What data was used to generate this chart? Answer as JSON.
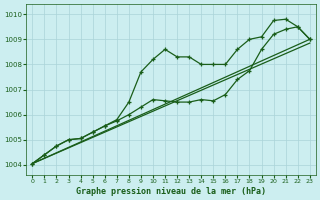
{
  "bg_color": "#cceef0",
  "grid_color": "#aad4d8",
  "line_color": "#1a5e1a",
  "xlabel": "Graphe pression niveau de la mer (hPa)",
  "ylim": [
    1003.6,
    1010.4
  ],
  "xlim": [
    -0.5,
    23.5
  ],
  "yticks": [
    1004,
    1005,
    1006,
    1007,
    1008,
    1009,
    1010
  ],
  "xticks": [
    0,
    1,
    2,
    3,
    4,
    5,
    6,
    7,
    8,
    9,
    10,
    11,
    12,
    13,
    14,
    15,
    16,
    17,
    18,
    19,
    20,
    21,
    22,
    23
  ],
  "line1_x": [
    0,
    1,
    2,
    3,
    4,
    5,
    6,
    7,
    8,
    9,
    10,
    11,
    12,
    13,
    14,
    15,
    16,
    17,
    18,
    19,
    20,
    21,
    22,
    23
  ],
  "line1_y": [
    1004.05,
    1004.4,
    1004.75,
    1005.0,
    1005.05,
    1005.3,
    1005.55,
    1005.8,
    1006.5,
    1007.7,
    1008.2,
    1008.6,
    1008.3,
    1008.3,
    1008.0,
    1008.0,
    1008.0,
    1008.6,
    1009.0,
    1009.1,
    1009.75,
    1009.8,
    1009.5,
    1009.0
  ],
  "line2_x": [
    0,
    1,
    2,
    3,
    4,
    5,
    6,
    7,
    8,
    9,
    10,
    11,
    12,
    13,
    14,
    15,
    16,
    17,
    18,
    19,
    20,
    21,
    22,
    23
  ],
  "line2_y": [
    1004.05,
    1004.4,
    1004.75,
    1005.0,
    1005.05,
    1005.3,
    1005.55,
    1005.75,
    1006.0,
    1006.3,
    1006.6,
    1006.55,
    1006.5,
    1006.5,
    1006.6,
    1006.55,
    1006.8,
    1007.4,
    1007.75,
    1008.6,
    1009.2,
    1009.4,
    1009.5,
    1009.0
  ],
  "line3_x": [
    0,
    23
  ],
  "line3_y": [
    1004.05,
    1009.0
  ],
  "line4_x": [
    0,
    23
  ],
  "line4_y": [
    1004.05,
    1008.85
  ]
}
